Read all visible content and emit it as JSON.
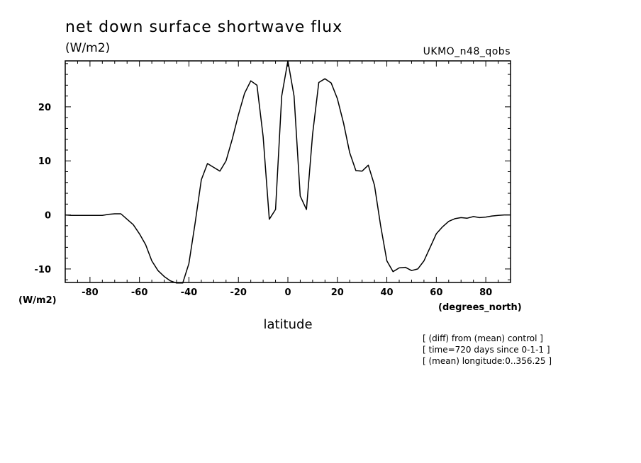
{
  "chart_data": {
    "type": "line",
    "title": "net down surface shortwave flux",
    "units": "(W/m2)",
    "model_label": "UKMO_n48_qobs",
    "ylabel_side": "(W/m2)",
    "x_units_label": "(degrees_north)",
    "xlabel": "latitude",
    "xlim": [
      -90,
      90
    ],
    "ylim": [
      -12.5,
      28.5
    ],
    "x_ticks": [
      -80,
      -60,
      -40,
      -20,
      0,
      20,
      40,
      60,
      80
    ],
    "x_tick_labels": [
      "-80",
      "-60",
      "-40",
      "-20",
      "0",
      "20",
      "40",
      "60",
      "80"
    ],
    "y_ticks": [
      -10,
      0,
      10,
      20
    ],
    "y_tick_labels": [
      "-10",
      "0",
      "10",
      "20"
    ],
    "grid": false,
    "series": [
      {
        "x": [
          -90,
          -87.5,
          -85,
          -82.5,
          -80,
          -77.5,
          -75,
          -72.5,
          -70,
          -67.5,
          -65,
          -62.5,
          -60,
          -57.5,
          -55,
          -52.5,
          -50,
          -47.5,
          -45,
          -42.5,
          -40,
          -37.5,
          -35,
          -32.5,
          -30,
          -27.5,
          -25,
          -22.5,
          -20,
          -17.5,
          -15,
          -12.5,
          -10,
          -7.5,
          -5,
          -2.5,
          0,
          2.5,
          5,
          7.5,
          10,
          12.5,
          15,
          17.5,
          20,
          22.5,
          25,
          27.5,
          30,
          32.5,
          35,
          37.5,
          40,
          42.5,
          45,
          47.5,
          50,
          52.5,
          55,
          57.5,
          60,
          62.5,
          65,
          67.5,
          70,
          72.5,
          75,
          77.5,
          80,
          82.5,
          85,
          87.5,
          90
        ],
        "y": [
          0,
          -0.1,
          -0.1,
          -0.1,
          -0.1,
          -0.1,
          -0.1,
          0.1,
          0.2,
          0.2,
          -0.8,
          -1.8,
          -3.5,
          -5.5,
          -8.5,
          -10.3,
          -11.4,
          -12.2,
          -12.6,
          -12.6,
          -9,
          -1.5,
          6.5,
          9.5,
          8.8,
          8.1,
          10,
          14,
          18.5,
          22.5,
          24.8,
          24,
          14.5,
          -0.8,
          1,
          22,
          28.5,
          22,
          3.5,
          1,
          15,
          24.5,
          25.2,
          24.4,
          21.5,
          17,
          11.5,
          8.2,
          8.1,
          9.2,
          5.5,
          -2,
          -8.5,
          -10.5,
          -9.8,
          -9.7,
          -10.3,
          -10,
          -8.5,
          -6,
          -3.5,
          -2.2,
          -1.2,
          -0.7,
          -0.5,
          -0.6,
          -0.3,
          -0.5,
          -0.4,
          -0.2,
          -0.1,
          0,
          0
        ]
      }
    ]
  },
  "notes": [
    "[ (diff) from (mean) control ]",
    "[ time=720 days since 0-1-1 ]",
    "[ (mean) longitude:0..356.25 ]"
  ]
}
